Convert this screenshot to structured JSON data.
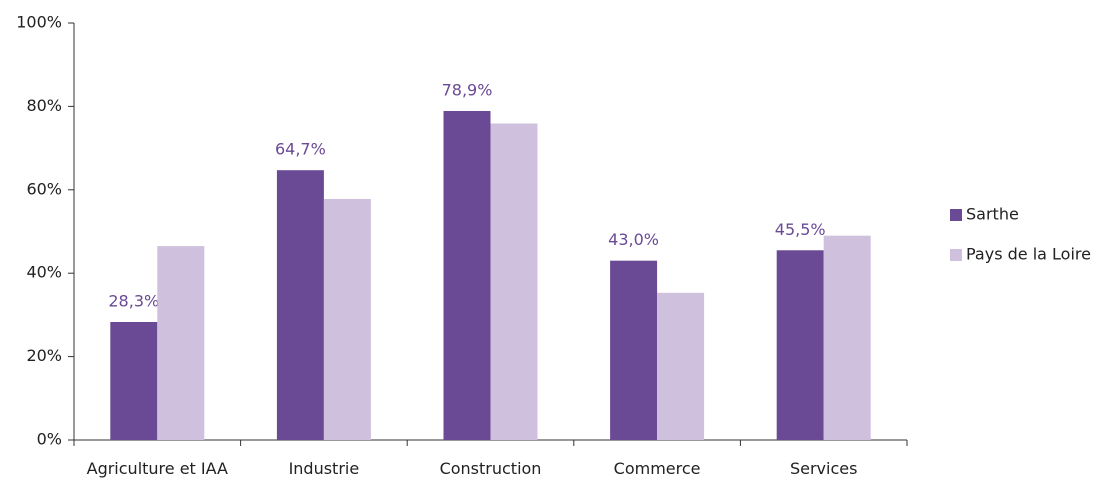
{
  "chart_data": {
    "type": "bar",
    "categories": [
      "Agriculture et IAA",
      "Industrie",
      "Construction",
      "Commerce",
      "Services"
    ],
    "series": [
      {
        "name": "Sarthe",
        "color": "#6a4a94",
        "values": [
          28.3,
          64.7,
          78.9,
          43.0,
          45.5
        ],
        "value_labels": [
          "28,3%",
          "64,7%",
          "78,9%",
          "43,0%",
          "45,5%"
        ]
      },
      {
        "name": "Pays de la Loire",
        "color": "#cfc0de",
        "values": [
          46.5,
          57.8,
          75.9,
          35.3,
          49.0
        ]
      }
    ],
    "ylim": [
      0,
      100
    ],
    "yticks": [
      {
        "value": 0,
        "label": "0%"
      },
      {
        "value": 20,
        "label": "20%"
      },
      {
        "value": 40,
        "label": "40%"
      },
      {
        "value": 60,
        "label": "60%"
      },
      {
        "value": 80,
        "label": "80%"
      },
      {
        "value": 100,
        "label": "100%"
      }
    ],
    "grid": false,
    "legend": "right"
  }
}
